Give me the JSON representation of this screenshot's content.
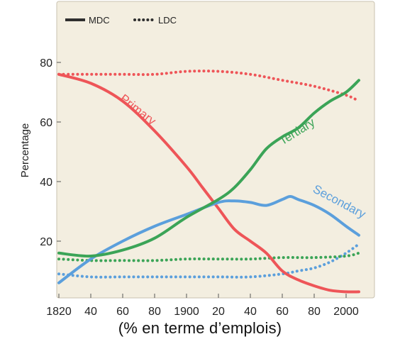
{
  "caption": "(% en terme d’emplois)",
  "colors": {
    "background": "#f3eee0",
    "primary": "#ee5558",
    "secondary": "#5b9fdc",
    "tertiary": "#3ba457",
    "legend": "#2f2f2f"
  },
  "chart_data": {
    "type": "line",
    "xlabel": "",
    "ylabel": "Percentage",
    "xlim": [
      1820,
      2010
    ],
    "ylim": [
      0,
      90
    ],
    "grid": false,
    "legend_placement": "top-left",
    "legend": [
      {
        "label": "MDC",
        "style": "solid"
      },
      {
        "label": "LDC",
        "style": "dotted"
      }
    ],
    "x_ticks": [
      1820,
      1840,
      1860,
      1880,
      1900,
      1920,
      1940,
      1960,
      1980,
      2000
    ],
    "x_tick_labels": [
      "1820",
      "40",
      "60",
      "80",
      "1900",
      "20",
      "40",
      "60",
      "80",
      "2000"
    ],
    "y_ticks": [
      20,
      40,
      60,
      80
    ],
    "series_labels": {
      "primary": "Primary",
      "secondary": "Secondary",
      "tertiary": "Tertiary"
    },
    "series": [
      {
        "name": "Primary",
        "group": "MDC",
        "style": "solid",
        "color_key": "primary",
        "x": [
          1820,
          1840,
          1860,
          1880,
          1900,
          1910,
          1920,
          1930,
          1940,
          1950,
          1960,
          1970,
          1980,
          1990,
          2000,
          2008
        ],
        "y": [
          76,
          73,
          67,
          57,
          45,
          38,
          31,
          24,
          20,
          16,
          10,
          7,
          5,
          3.5,
          3,
          3
        ]
      },
      {
        "name": "Secondary",
        "group": "MDC",
        "style": "solid",
        "color_key": "secondary",
        "x": [
          1820,
          1840,
          1860,
          1880,
          1900,
          1920,
          1930,
          1940,
          1950,
          1960,
          1965,
          1970,
          1980,
          1990,
          2000,
          2008
        ],
        "y": [
          6,
          14,
          20,
          25,
          29,
          33,
          33.5,
          33,
          32,
          34,
          35,
          34,
          32,
          29,
          25,
          22
        ]
      },
      {
        "name": "Tertiary",
        "group": "MDC",
        "style": "solid",
        "color_key": "tertiary",
        "x": [
          1820,
          1840,
          1860,
          1880,
          1900,
          1920,
          1930,
          1940,
          1950,
          1960,
          1970,
          1980,
          1990,
          2000,
          2008
        ],
        "y": [
          16,
          15,
          17,
          21,
          28,
          34,
          38,
          44,
          51,
          55,
          58,
          63,
          67,
          70,
          74
        ]
      },
      {
        "name": "Primary",
        "group": "LDC",
        "style": "dotted",
        "color_key": "primary",
        "x": [
          1820,
          1840,
          1860,
          1880,
          1900,
          1920,
          1940,
          1960,
          1980,
          2000,
          2008
        ],
        "y": [
          76,
          76,
          76,
          76,
          77,
          77,
          76,
          74,
          72,
          69,
          67
        ]
      },
      {
        "name": "Secondary",
        "group": "LDC",
        "style": "dotted",
        "color_key": "secondary",
        "x": [
          1820,
          1840,
          1860,
          1880,
          1900,
          1920,
          1940,
          1960,
          1970,
          1980,
          1990,
          2000,
          2008
        ],
        "y": [
          9,
          8,
          8,
          8,
          8,
          8,
          8,
          9,
          10,
          11,
          13,
          16,
          19
        ]
      },
      {
        "name": "Tertiary",
        "group": "LDC",
        "style": "dotted",
        "color_key": "tertiary",
        "x": [
          1820,
          1840,
          1860,
          1880,
          1900,
          1920,
          1940,
          1960,
          1980,
          2000,
          2008
        ],
        "y": [
          14,
          13.5,
          13.5,
          13.5,
          14,
          14,
          14,
          14.5,
          14.5,
          15,
          16
        ]
      }
    ]
  }
}
